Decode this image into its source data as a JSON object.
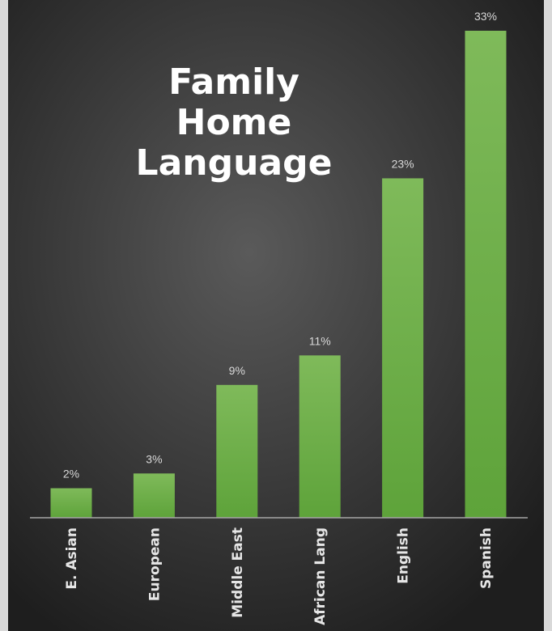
{
  "chart_data": {
    "type": "bar",
    "title_lines": [
      "Family",
      "Home",
      "Language"
    ],
    "categories": [
      "E. Asian",
      "European",
      "Middle East",
      "African Lang",
      "English",
      "Spanish"
    ],
    "values": [
      2,
      3,
      9,
      11,
      23,
      33
    ],
    "value_labels": [
      "2%",
      "3%",
      "9%",
      "11%",
      "23%",
      "33%"
    ],
    "ylim": [
      0,
      33
    ],
    "grid": false,
    "legend": "none",
    "colors": {
      "bar_top": "#7fba5a",
      "bar_bottom": "#5ea33a",
      "bg_center": "#5a5a5a",
      "bg_edge": "#1e1e1e",
      "axis": "#a6a6a6"
    }
  }
}
